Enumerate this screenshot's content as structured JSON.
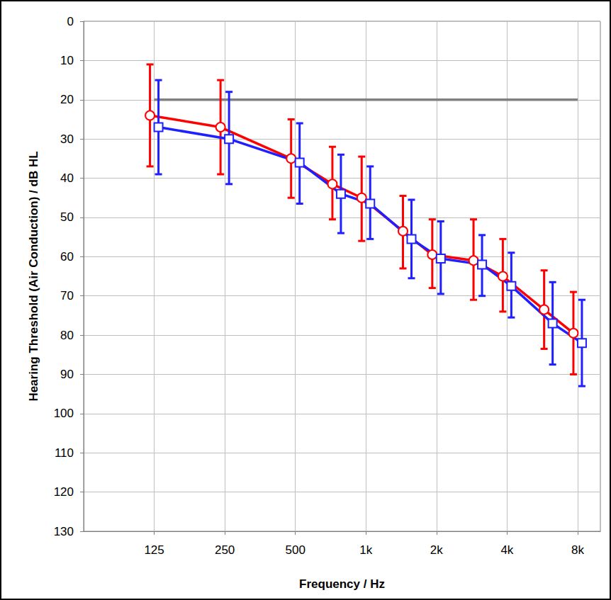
{
  "chart_data": {
    "type": "line",
    "x_label": "Frequency / Hz",
    "y_label": "Hearing Threshold (Air Conduction) / dB HL",
    "log": "x",
    "grid": true,
    "x": [
      125,
      250,
      500,
      750,
      1000,
      1500,
      2000,
      3000,
      4000,
      6000,
      8000
    ],
    "xlim": [
      62.5,
      10000
    ],
    "xticks": [
      125,
      250,
      500,
      {
        "value": 1000,
        "label": "1k"
      },
      {
        "value": 2000,
        "label": "2k"
      },
      {
        "value": 4000,
        "label": "4k"
      },
      {
        "value": 8000,
        "label": "8k"
      }
    ],
    "ylim": [
      0,
      130
    ],
    "yticks": [
      0,
      10,
      20,
      30,
      40,
      50,
      60,
      70,
      80,
      90,
      100,
      110,
      120,
      130
    ],
    "inverted_y": true,
    "series": [
      {
        "color": "#ff0000",
        "marker": "circle",
        "values": [
          24,
          27,
          35,
          41.5,
          45,
          53.5,
          59.5,
          61,
          65,
          73.5,
          79.5
        ],
        "error_low": [
          11,
          15,
          25,
          32,
          34.5,
          44.5,
          50.5,
          50.5,
          55.5,
          63.5,
          69
        ],
        "error_high": [
          37,
          39,
          45,
          50.5,
          56,
          63,
          68,
          71,
          74,
          83.5,
          90
        ]
      },
      {
        "color": "#1f1fff",
        "marker": "square",
        "values": [
          27,
          30,
          36,
          44,
          46.5,
          55.5,
          60.5,
          62,
          67.5,
          77,
          82
        ],
        "error_low": [
          15,
          18,
          26,
          34,
          37,
          45.5,
          51,
          54.5,
          59,
          66.5,
          71
        ],
        "error_high": [
          39,
          41.5,
          46.5,
          54,
          55.5,
          65.5,
          69.5,
          70,
          75.5,
          87.5,
          93
        ]
      }
    ],
    "reference_line": {
      "x": [
        125,
        8000
      ],
      "value": 20,
      "color": "#808080"
    }
  }
}
